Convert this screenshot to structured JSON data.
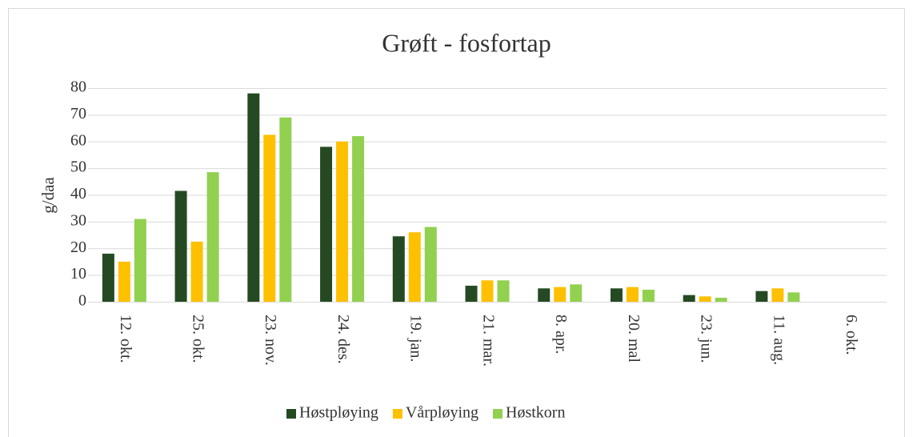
{
  "chart_data": {
    "type": "bar",
    "title": "Grøft - fosfortap",
    "ylabel": "g/daa",
    "categories": [
      "12. okt.",
      "25. okt.",
      "23. nov.",
      "24. des.",
      "19. jan.",
      "21. mar.",
      "8. apr.",
      "20. mal",
      "23. jun.",
      "11. aug.",
      "6. okt."
    ],
    "series": [
      {
        "name": "Høstpløying",
        "color": "#254a23",
        "values": [
          18,
          41.5,
          78,
          58,
          24.5,
          6,
          5,
          5,
          2.5,
          4,
          0
        ]
      },
      {
        "name": "Vårpløying",
        "color": "#ffc000",
        "values": [
          15,
          22.5,
          62.5,
          60,
          26,
          8,
          5.5,
          5.5,
          2,
          5,
          0
        ]
      },
      {
        "name": "Høstkorn",
        "color": "#92d050",
        "values": [
          31,
          48.5,
          69,
          62,
          28,
          8,
          6.5,
          4.5,
          1.5,
          3.5,
          0
        ]
      }
    ],
    "ylim": [
      0,
      80
    ],
    "yticks": [
      0,
      10,
      20,
      30,
      40,
      50,
      60,
      70,
      80
    ],
    "grid": true,
    "legend": "bottom"
  }
}
